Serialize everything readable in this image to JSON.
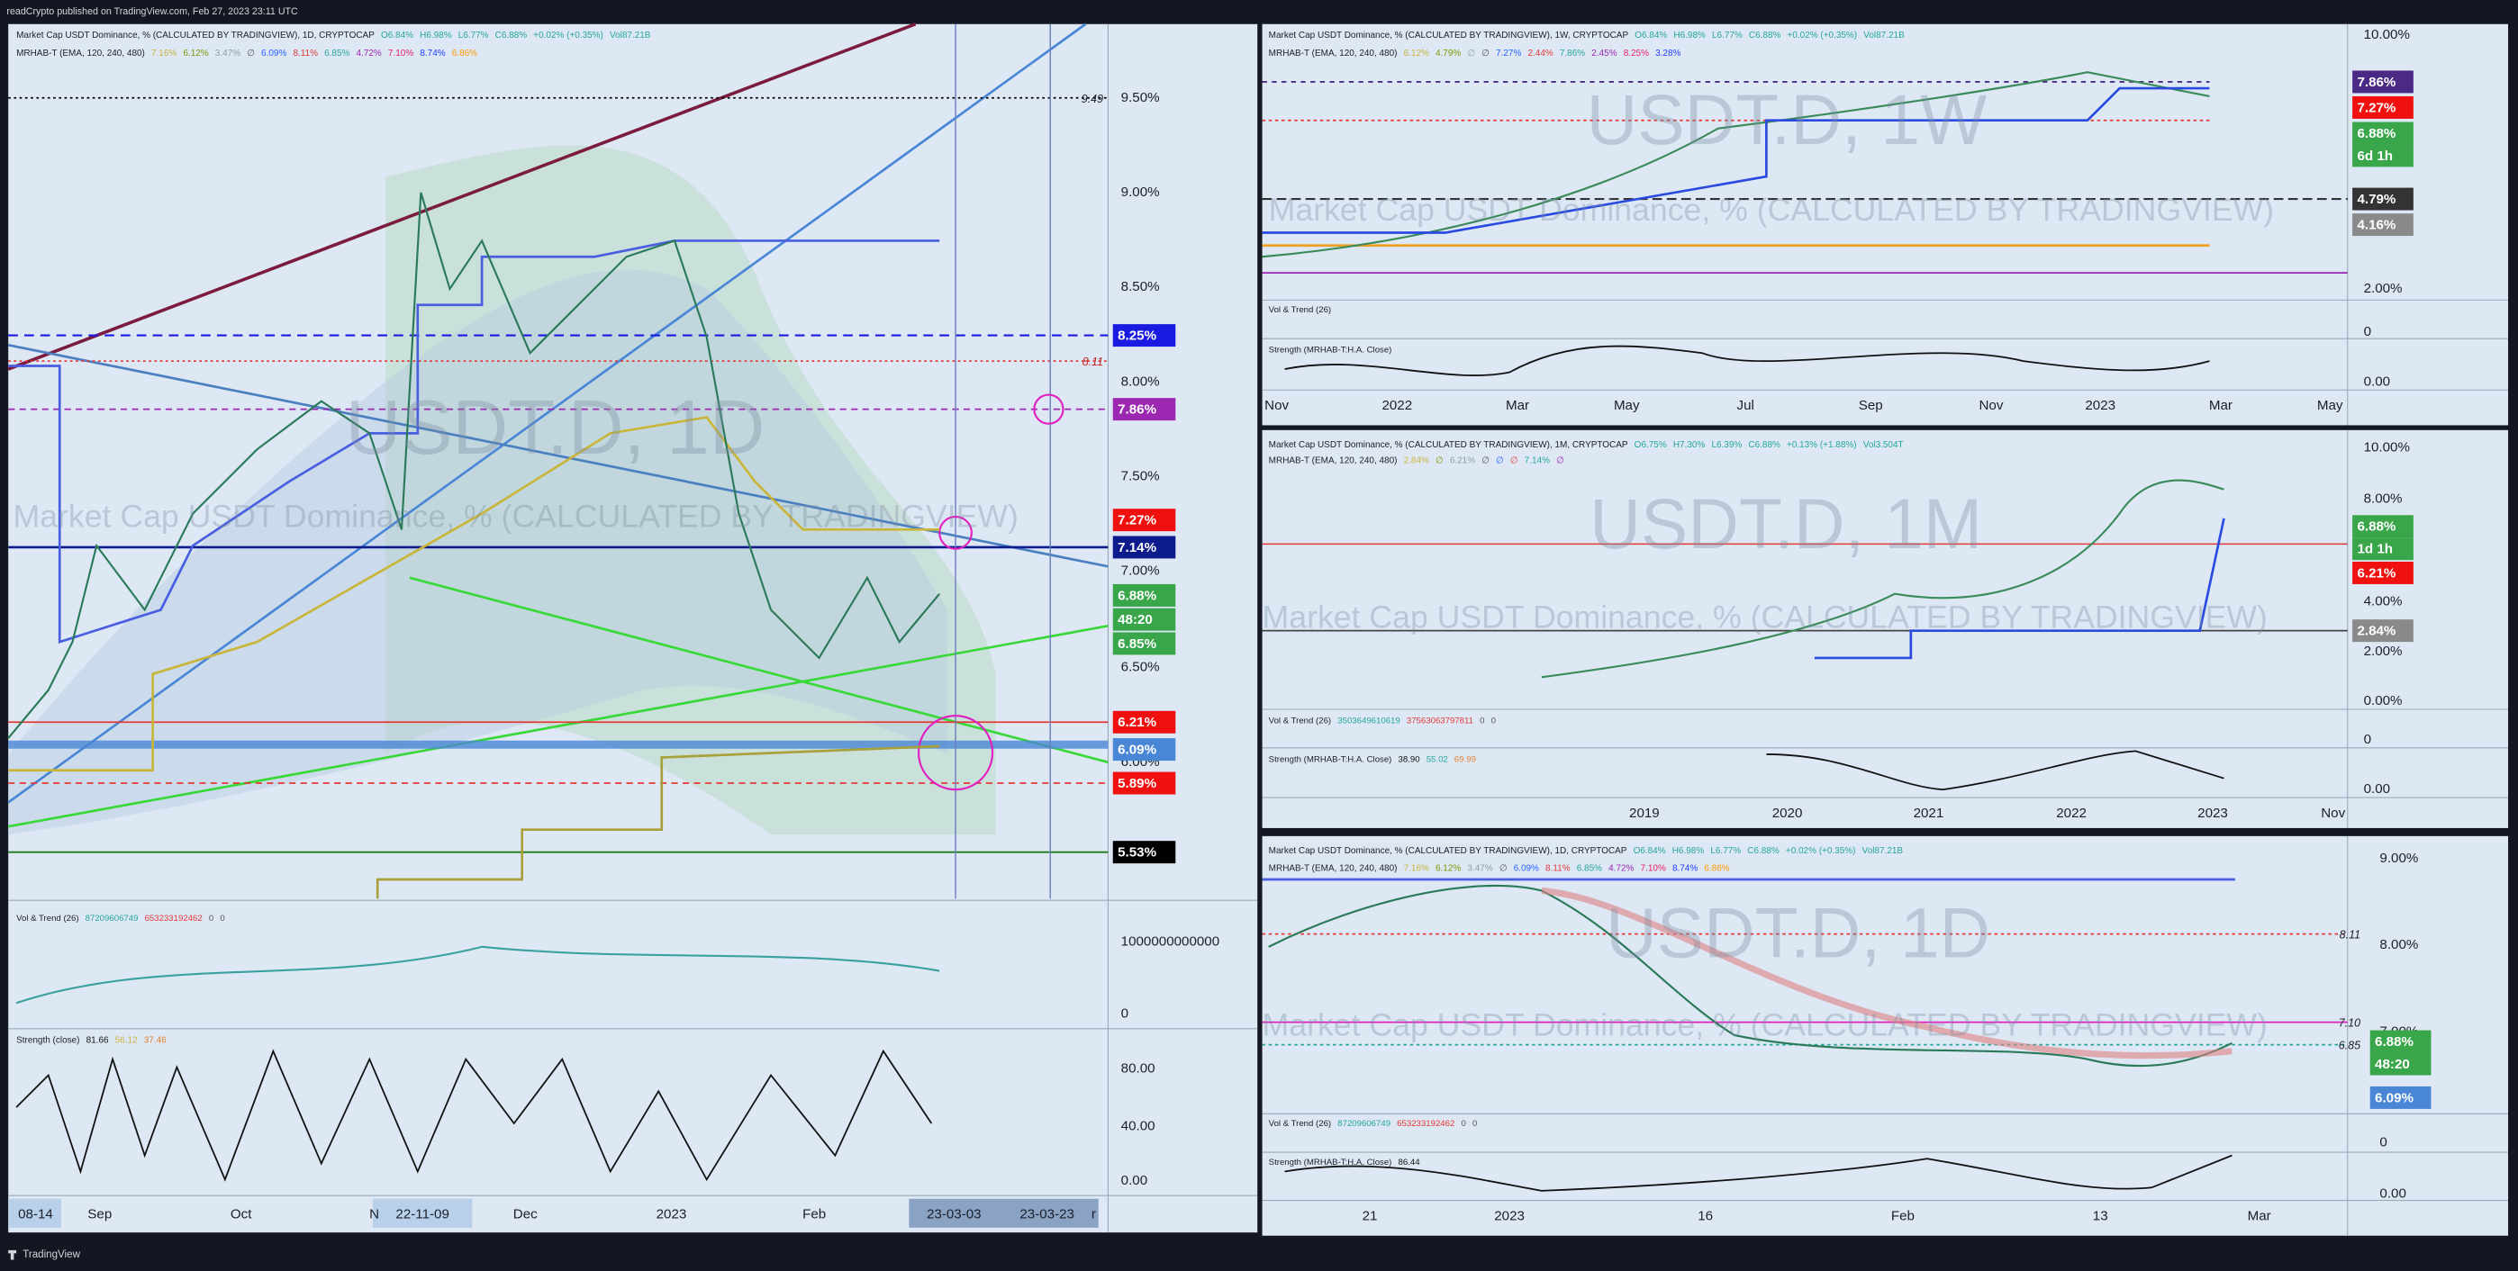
{
  "header": "readCrypto published on TradingView.com, Feb 27, 2023 23:11 UTC",
  "footer": "TradingView",
  "daily_main": {
    "symbol_line": {
      "title": "Market Cap USDT Dominance, % (CALCULATED BY TRADINGVIEW), 1D, CRYPTOCAP",
      "values": [
        "O6.84%",
        "H6.98%",
        "L6.77%",
        "C6.88%",
        "+0.02% (+0.35%)",
        "Vol87.21B"
      ]
    },
    "indicator_line": {
      "title": "MRHAB-T (EMA, 120, 240, 480)",
      "values": [
        "7.16%",
        "6.12%",
        "3.47%",
        "∅",
        "6.09%",
        "8.11%",
        "6.85%",
        "4.72%",
        "7.10%",
        "8.74%",
        "6.86%"
      ]
    },
    "watermark": "USDT.D, 1D",
    "watermark_name": "Market Cap USDT Dominance, % (CALCULATED BY TRADINGVIEW)",
    "price_axis": [
      "9.50%",
      "9.00%",
      "8.50%",
      "8.00%",
      "7.50%",
      "7.00%",
      "6.50%",
      "6.00%"
    ],
    "line_labels": [
      "9.49",
      "8.11"
    ],
    "badges": [
      "8.25%",
      "7.86%",
      "7.27%",
      "7.14%",
      "6.88%",
      "48:20",
      "6.85%",
      "6.21%",
      "6.09%",
      "5.89%",
      "5.53%"
    ],
    "volume": {
      "title": "Vol & Trend (26)",
      "values": [
        "87209606749",
        "653233192462",
        "0",
        "0"
      ],
      "axis": [
        "1000000000000",
        "0"
      ]
    },
    "strength": {
      "title": "Strength (close)",
      "values": [
        "81.66",
        "56.12",
        "37.46"
      ],
      "axis": [
        "80.00",
        "40.00",
        "0.00"
      ]
    },
    "time_axis": [
      "08-14",
      "Sep",
      "Oct",
      "N",
      "22-11-09",
      "Dec",
      "2023",
      "Feb",
      "23-03-03",
      "23-03-23",
      "r"
    ]
  },
  "weekly": {
    "symbol_line": {
      "title": "Market Cap USDT Dominance, % (CALCULATED BY TRADINGVIEW), 1W, CRYPTOCAP",
      "values": [
        "O6.84%",
        "H6.98%",
        "L6.77%",
        "C6.88%",
        "+0.02% (+0.35%)",
        "Vol87.21B"
      ]
    },
    "indicator_line": {
      "title": "MRHAB-T (EMA, 120, 240, 480)",
      "values": [
        "6.12%",
        "4.79%",
        "∅",
        "∅",
        "7.27%",
        "2.44%",
        "7.86%",
        "2.45%",
        "8.25%",
        "3.28%"
      ]
    },
    "watermark": "USDT.D, 1W",
    "watermark_name": "Market Cap USDT Dominance, % (CALCULATED BY TRADINGVIEW)",
    "price_axis": [
      "10.00%",
      "2.00%",
      "0",
      "0.00"
    ],
    "badges": [
      "7.86%",
      "7.27%",
      "6.88%",
      "6d 1h",
      "4.79%",
      "4.16%"
    ],
    "volume": {
      "title": "Vol & Trend (26)"
    },
    "strength": {
      "title": "Strength (MRHAB-T:H.A. Close)"
    },
    "time_axis": [
      "Nov",
      "2022",
      "Mar",
      "May",
      "Jul",
      "Sep",
      "Nov",
      "2023",
      "Mar",
      "May"
    ]
  },
  "monthly": {
    "symbol_line": {
      "title": "Market Cap USDT Dominance, % (CALCULATED BY TRADINGVIEW), 1M, CRYPTOCAP",
      "values": [
        "O6.75%",
        "H7.30%",
        "L6.39%",
        "C6.88%",
        "+0.13% (+1.88%)",
        "Vol3.504T"
      ]
    },
    "indicator_line": {
      "title": "MRHAB-T (EMA, 120, 240, 480)",
      "values": [
        "2.84%",
        "∅",
        "6.21%",
        "∅",
        "∅",
        "∅",
        "7.14%",
        "∅"
      ]
    },
    "watermark": "USDT.D, 1M",
    "watermark_name": "Market Cap USDT Dominance, % (CALCULATED BY TRADINGVIEW)",
    "price_axis": [
      "10.00%",
      "8.00%",
      "4.00%",
      "2.00%",
      "0.00%",
      "0",
      "0.00"
    ],
    "badges": [
      "6.88%",
      "1d 1h",
      "6.21%",
      "2.84%"
    ],
    "volume": {
      "title": "Vol & Trend (26)",
      "values": [
        "3503649610619",
        "37563063797811",
        "0",
        "0"
      ]
    },
    "strength": {
      "title": "Strength (MRHAB-T:H.A. Close)",
      "values": [
        "38.90",
        "55.02",
        "69.99"
      ]
    },
    "time_axis": [
      "2019",
      "2020",
      "2021",
      "2022",
      "2023",
      "Nov"
    ]
  },
  "daily_small": {
    "symbol_line": {
      "title": "Market Cap USDT Dominance, % (CALCULATED BY TRADINGVIEW), 1D, CRYPTOCAP",
      "values": [
        "O6.84%",
        "H6.98%",
        "L6.77%",
        "C6.88%",
        "+0.02% (+0.35%)",
        "Vol87.21B"
      ]
    },
    "indicator_line": {
      "title": "MRHAB-T (EMA, 120, 240, 480)",
      "values": [
        "7.16%",
        "6.12%",
        "3.47%",
        "∅",
        "6.09%",
        "8.11%",
        "6.85%",
        "4.72%",
        "7.10%",
        "8.74%",
        "6.86%"
      ]
    },
    "watermark": "USDT.D, 1D",
    "watermark_name": "Market Cap USDT Dominance, % (CALCULATED BY TRADINGVIEW)",
    "price_axis": [
      "9.00%",
      "8.00%",
      "7.00%",
      "0",
      "0.00"
    ],
    "line_labels": [
      "8.11",
      "7.10",
      "6.85"
    ],
    "badges": [
      "6.88%",
      "48:20",
      "6.09%"
    ],
    "volume": {
      "title": "Vol & Trend (26)",
      "values": [
        "87209606749",
        "653233192462",
        "0",
        "0"
      ]
    },
    "strength": {
      "title": "Strength (MRHAB-T:H.A. Close)",
      "values": [
        "86.44"
      ]
    },
    "time_axis": [
      "21",
      "2023",
      "16",
      "Feb",
      "13",
      "Mar"
    ]
  }
}
